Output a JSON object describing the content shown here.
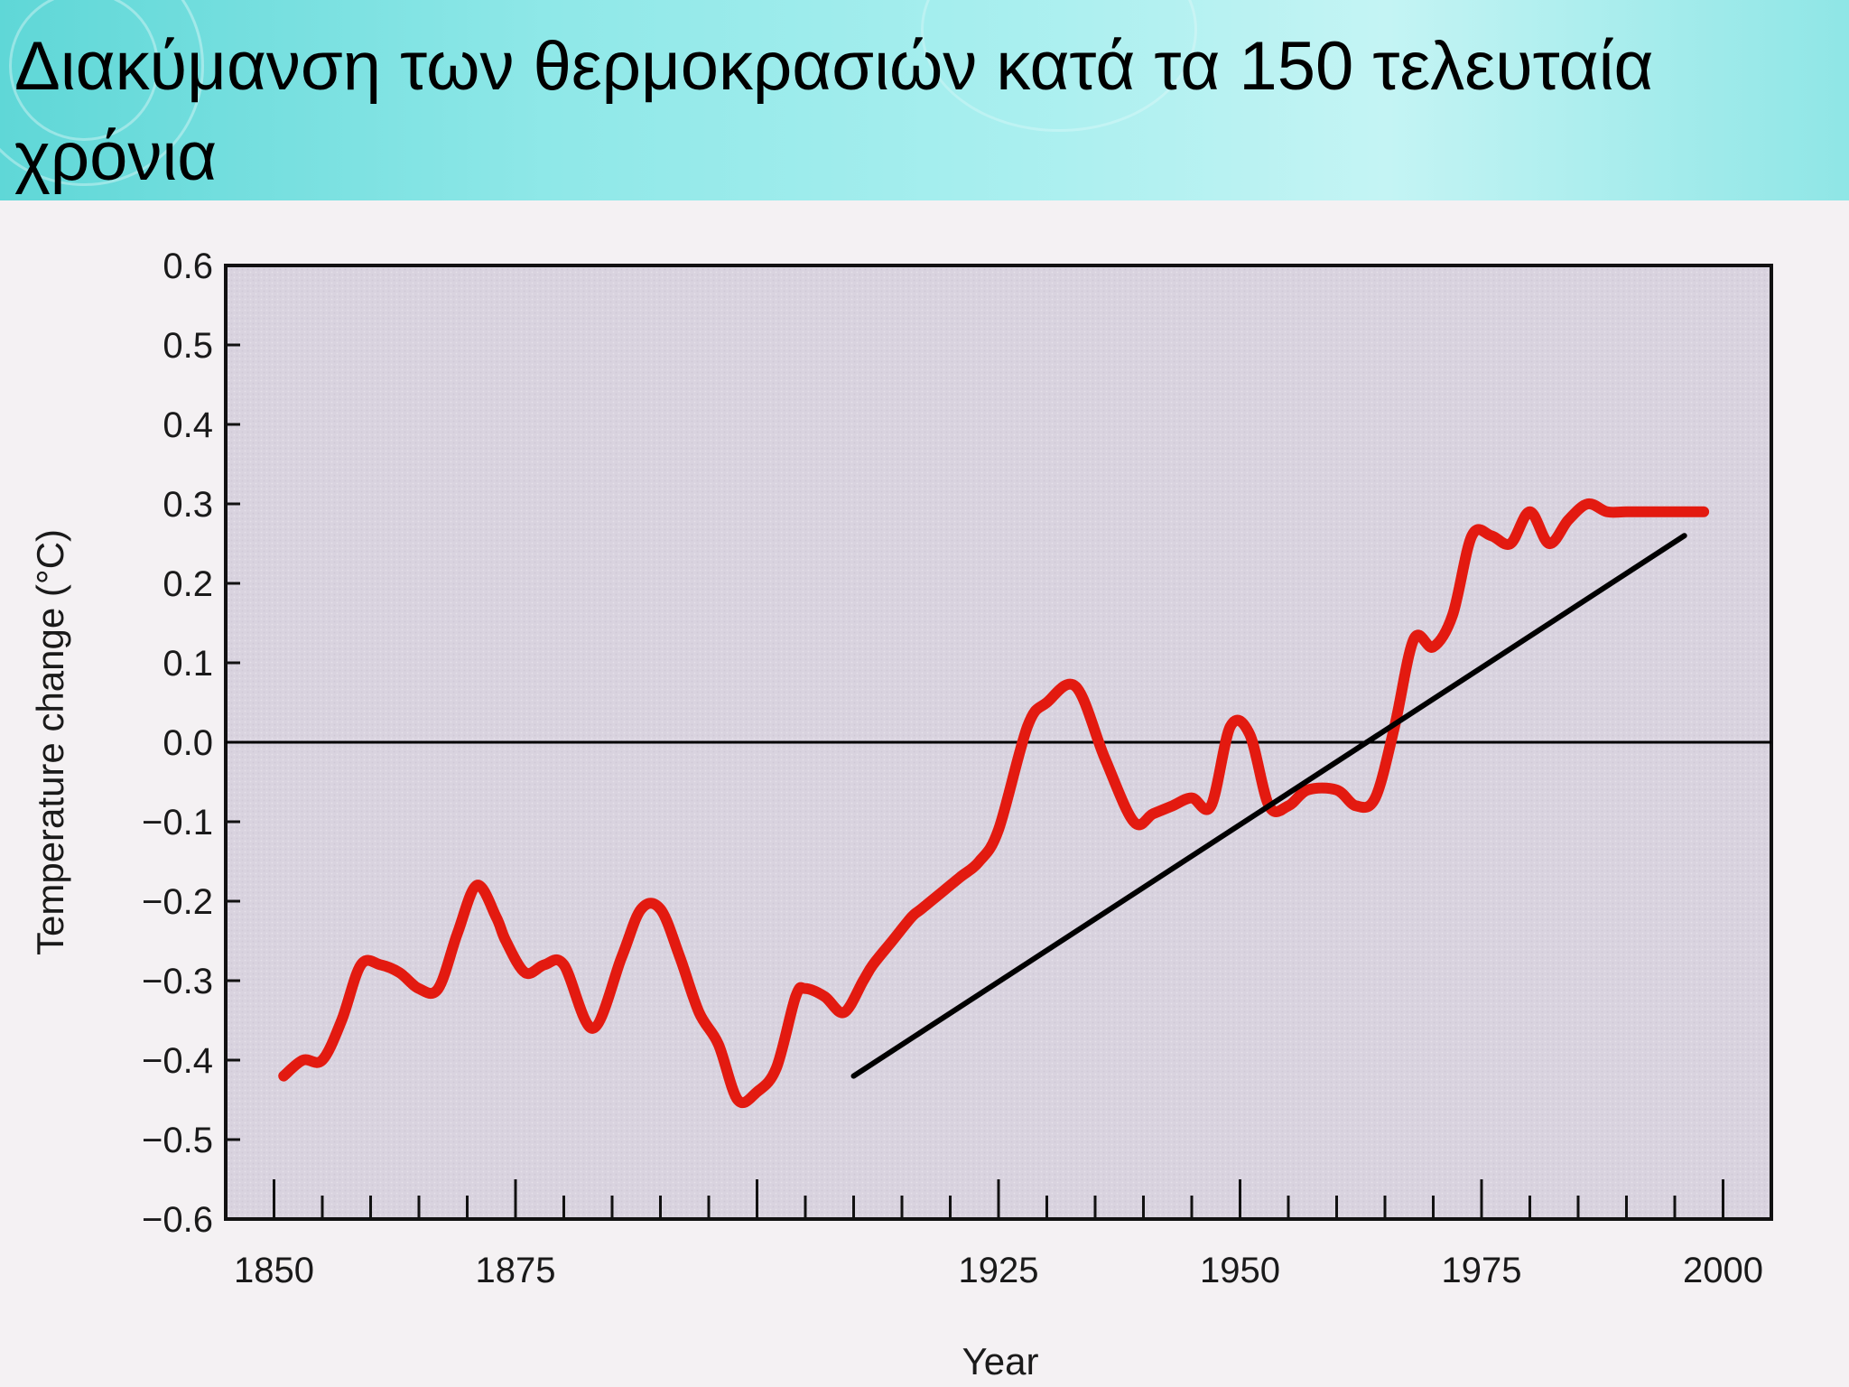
{
  "slide": {
    "title": "Διακύμανση των θερμοκρασιών κατά τα 150 τελευταία χρόνια"
  },
  "colors": {
    "title_band": "#8fe8e8",
    "plot_background": "#ddd7e2",
    "series_line": "#e31a10",
    "trend_line": "#000000",
    "zero_line": "#000000"
  },
  "chart_data": {
    "type": "line",
    "title": "",
    "xlabel": "Year",
    "ylabel": "Temperature change (°C)",
    "xlim": [
      1845,
      2005
    ],
    "ylim": [
      -0.6,
      0.6
    ],
    "x_ticks": [
      "1850",
      "1875",
      "1925",
      "1950",
      "1975",
      "2000"
    ],
    "y_ticks": [
      "0.6",
      "0.5",
      "0.4",
      "0.3",
      "0.2",
      "0.1",
      "0.0",
      "−0.1",
      "−0.2",
      "−0.3",
      "−0.4",
      "−0.5",
      "−0.6"
    ],
    "grid": false,
    "zero_reference_line": 0.0,
    "series": [
      {
        "x": [
          1851,
          1853,
          1855,
          1857,
          1859,
          1861,
          1863,
          1865,
          1867,
          1869,
          1871,
          1873,
          1874,
          1876,
          1878,
          1880,
          1883,
          1886,
          1888,
          1890,
          1892,
          1894,
          1896,
          1898,
          1900,
          1902,
          1904,
          1905,
          1907,
          1909,
          1911,
          1912,
          1914,
          1916,
          1917,
          1919,
          1921,
          1923,
          1925,
          1928,
          1930,
          1933,
          1936,
          1939,
          1941,
          1943,
          1945,
          1947,
          1949,
          1951,
          1953,
          1955,
          1957,
          1960,
          1962,
          1964,
          1966,
          1968,
          1970,
          1972,
          1974,
          1976,
          1978,
          1980,
          1982,
          1984,
          1986,
          1988,
          1990,
          1993,
          1995,
          1996,
          1998
        ],
        "y": [
          -0.42,
          -0.4,
          -0.4,
          -0.35,
          -0.28,
          -0.28,
          -0.29,
          -0.31,
          -0.31,
          -0.24,
          -0.18,
          -0.22,
          -0.25,
          -0.29,
          -0.28,
          -0.28,
          -0.36,
          -0.27,
          -0.21,
          -0.21,
          -0.27,
          -0.34,
          -0.38,
          -0.45,
          -0.44,
          -0.41,
          -0.32,
          -0.31,
          -0.32,
          -0.34,
          -0.3,
          -0.28,
          -0.25,
          -0.22,
          -0.21,
          -0.19,
          -0.17,
          -0.15,
          -0.11,
          0.02,
          0.05,
          0.07,
          -0.02,
          -0.1,
          -0.09,
          -0.08,
          -0.07,
          -0.08,
          0.02,
          0.01,
          -0.08,
          -0.08,
          -0.06,
          -0.06,
          -0.08,
          -0.07,
          0.02,
          0.13,
          0.12,
          0.16,
          0.26,
          0.26,
          0.25,
          0.29,
          0.25,
          0.28,
          0.3,
          0.29,
          0.29,
          0.29,
          0.29,
          0.29,
          0.29
        ]
      }
    ],
    "annotations": [
      {
        "type": "trend_line",
        "from": [
          1910,
          -0.42
        ],
        "to": [
          1996,
          0.26
        ]
      }
    ]
  }
}
